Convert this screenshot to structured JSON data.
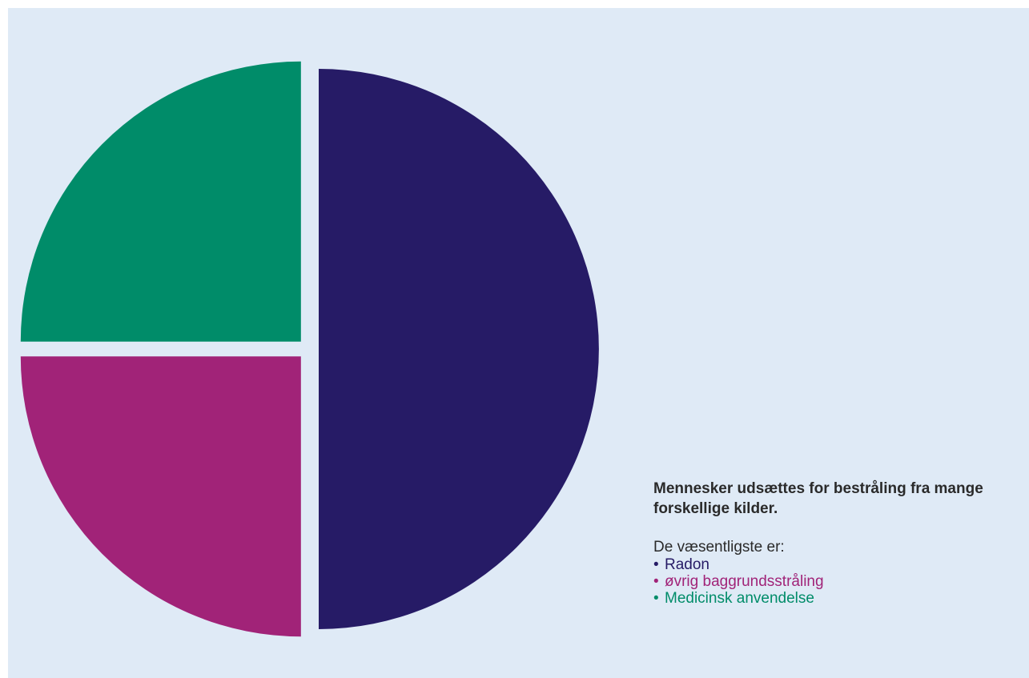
{
  "chart_data": {
    "type": "pie",
    "categories": [
      "Radon",
      "øvrig baggrundsstråling",
      "Medicinsk anvendelse"
    ],
    "values": [
      50,
      25,
      25
    ],
    "colors": [
      "#261b66",
      "#a12378",
      "#008c69"
    ],
    "title": "",
    "start_angle_deg": 0,
    "direction": "clockwise",
    "exploded": true
  },
  "legend": {
    "heading": "Mennesker udsættes for bestråling fra mange forskellige kilder.",
    "intro": "De væsentligste er:",
    "bullet": "•",
    "items": [
      {
        "label": "Radon",
        "color": "#261b66"
      },
      {
        "label": "øvrig baggrundsstråling",
        "color": "#a12378"
      },
      {
        "label": "Medicinsk anvendelse",
        "color": "#008c69"
      }
    ]
  },
  "colors": {
    "background": "#dfeaf6",
    "text": "#2a2a2a"
  }
}
